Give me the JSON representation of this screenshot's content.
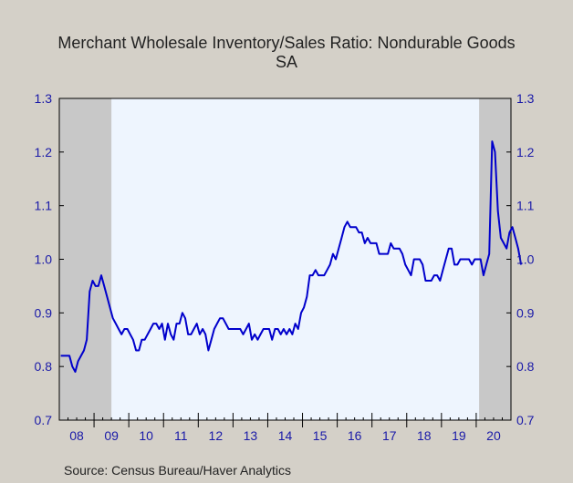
{
  "title": "Merchant Wholesale Inventory/Sales Ratio: Nondurable Goods",
  "subtitle": "SA",
  "source": "Source:  Census Bureau/Haver Analytics",
  "chart_data": {
    "type": "line",
    "title": "Merchant Wholesale Inventory/Sales Ratio: Nondurable Goods",
    "subtitle": "SA",
    "ylim": [
      0.7,
      1.3
    ],
    "yticks": [
      "0.7",
      "0.8",
      "0.9",
      "1.0",
      "1.1",
      "1.2",
      "1.3"
    ],
    "x_year_labels": [
      "08",
      "09",
      "10",
      "11",
      "12",
      "13",
      "14",
      "15",
      "16",
      "17",
      "18",
      "19",
      "20"
    ],
    "x_start": "2008-01",
    "frequency": "monthly",
    "recessions": [
      {
        "start": "2008-01",
        "end": "2009-06"
      },
      {
        "start": "2020-02",
        "end": "2020-12"
      }
    ],
    "colors": {
      "line": "#0000cc",
      "plot_background": "#eef5fe",
      "recession_shading": "#c8c8c8",
      "axis_labels": "#1a1aa8"
    },
    "series": [
      {
        "values": [
          0.82,
          0.82,
          0.82,
          0.82,
          0.8,
          0.79,
          0.81,
          0.82,
          0.83,
          0.85,
          0.94,
          0.96,
          0.95,
          0.95,
          0.97,
          0.95,
          0.93,
          0.91,
          0.89,
          0.88,
          0.87,
          0.86,
          0.87,
          0.87,
          0.86,
          0.85,
          0.83,
          0.83,
          0.85,
          0.85,
          0.86,
          0.87,
          0.88,
          0.88,
          0.87,
          0.88,
          0.85,
          0.88,
          0.86,
          0.85,
          0.88,
          0.88,
          0.9,
          0.89,
          0.86,
          0.86,
          0.87,
          0.88,
          0.86,
          0.87,
          0.86,
          0.83,
          0.85,
          0.87,
          0.88,
          0.89,
          0.89,
          0.88,
          0.87,
          0.87,
          0.87,
          0.87,
          0.87,
          0.86,
          0.87,
          0.88,
          0.85,
          0.86,
          0.85,
          0.86,
          0.87,
          0.87,
          0.87,
          0.85,
          0.87,
          0.87,
          0.86,
          0.87,
          0.86,
          0.87,
          0.86,
          0.88,
          0.87,
          0.9,
          0.91,
          0.93,
          0.97,
          0.97,
          0.98,
          0.97,
          0.97,
          0.97,
          0.98,
          0.99,
          1.01,
          1.0,
          1.02,
          1.04,
          1.06,
          1.07,
          1.06,
          1.06,
          1.06,
          1.05,
          1.05,
          1.03,
          1.04,
          1.03,
          1.03,
          1.03,
          1.01,
          1.01,
          1.01,
          1.01,
          1.03,
          1.02,
          1.02,
          1.02,
          1.01,
          0.99,
          0.98,
          0.97,
          1.0,
          1.0,
          1.0,
          0.99,
          0.96,
          0.96,
          0.96,
          0.97,
          0.97,
          0.96,
          0.98,
          1.0,
          1.02,
          1.02,
          0.99,
          0.99,
          1.0,
          1.0,
          1.0,
          1.0,
          0.99,
          1.0,
          1.0,
          1.0,
          0.97,
          0.99,
          1.01,
          1.22,
          1.2,
          1.09,
          1.04,
          1.03,
          1.02,
          1.05,
          1.06,
          1.04,
          1.02,
          0.99
        ]
      }
    ]
  }
}
